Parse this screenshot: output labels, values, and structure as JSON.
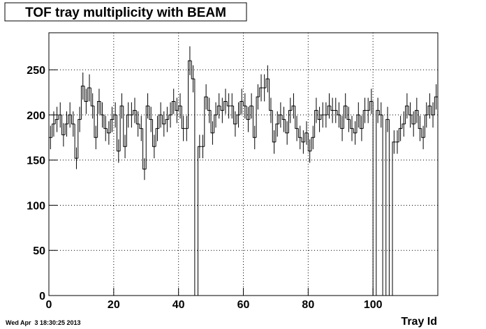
{
  "chart_data": {
    "type": "histogram",
    "title": "TOF tray multiplicity with BEAM",
    "x_label": "Tray Id",
    "footer": "Wed Apr  3 18:30:25 2013",
    "bins": [
      0,
      1,
      2,
      3,
      4,
      5,
      6,
      7,
      8,
      9,
      10,
      11,
      12,
      13,
      14,
      15,
      16,
      17,
      18,
      19,
      20,
      21,
      22,
      23,
      24,
      25,
      26,
      27,
      28,
      29,
      30,
      31,
      32,
      33,
      34,
      35,
      36,
      37,
      38,
      39,
      40,
      41,
      42,
      43,
      44,
      45,
      46,
      47,
      48,
      49,
      50,
      51,
      52,
      53,
      54,
      55,
      56,
      57,
      58,
      59,
      60,
      61,
      62,
      63,
      64,
      65,
      66,
      67,
      68,
      69,
      70,
      71,
      72,
      73,
      74,
      75,
      76,
      77,
      78,
      79,
      80,
      81,
      82,
      83,
      84,
      85,
      86,
      87,
      88,
      89,
      90,
      91,
      92,
      93,
      94,
      95,
      96,
      97,
      98,
      99,
      100,
      101,
      102,
      103,
      104,
      105,
      106,
      107,
      108,
      109,
      110,
      111,
      112,
      113,
      114,
      115,
      116,
      117,
      118,
      119,
      120
    ],
    "values": [
      175,
      190,
      195,
      200,
      178,
      190,
      200,
      190,
      152,
      195,
      232,
      215,
      230,
      210,
      175,
      215,
      200,
      185,
      180,
      195,
      200,
      160,
      210,
      165,
      200,
      200,
      205,
      190,
      185,
      140,
      210,
      195,
      165,
      185,
      200,
      190,
      195,
      200,
      215,
      205,
      210,
      185,
      185,
      260,
      240,
      0,
      165,
      165,
      220,
      205,
      180,
      200,
      210,
      205,
      215,
      210,
      210,
      190,
      200,
      215,
      210,
      195,
      210,
      175,
      220,
      230,
      230,
      240,
      205,
      170,
      190,
      200,
      195,
      180,
      205,
      210,
      185,
      175,
      170,
      180,
      160,
      175,
      205,
      195,
      200,
      200,
      210,
      205,
      205,
      200,
      185,
      210,
      195,
      185,
      180,
      200,
      185,
      205,
      205,
      215,
      0,
      205,
      200,
      0,
      195,
      0,
      170,
      170,
      185,
      190,
      210,
      200,
      190,
      205,
      185,
      175,
      200,
      210,
      200,
      220
    ],
    "errors": [
      13,
      14,
      14,
      14,
      13,
      14,
      14,
      14,
      12,
      14,
      15,
      14,
      15,
      14,
      13,
      14,
      14,
      14,
      13,
      14,
      14,
      13,
      14,
      13,
      14,
      14,
      14,
      14,
      14,
      12,
      14,
      14,
      13,
      14,
      14,
      14,
      14,
      14,
      14,
      14,
      14,
      14,
      14,
      16,
      15,
      0,
      13,
      13,
      14,
      14,
      13,
      14,
      14,
      14,
      14,
      14,
      14,
      14,
      14,
      14,
      14,
      14,
      14,
      13,
      14,
      15,
      15,
      15,
      14,
      13,
      14,
      14,
      14,
      13,
      14,
      14,
      14,
      13,
      13,
      13,
      13,
      13,
      14,
      14,
      14,
      14,
      14,
      14,
      14,
      14,
      14,
      14,
      14,
      14,
      13,
      14,
      14,
      14,
      14,
      14,
      0,
      14,
      14,
      0,
      14,
      0,
      13,
      13,
      14,
      14,
      14,
      14,
      14,
      14,
      14,
      13,
      14,
      14,
      14,
      14
    ],
    "color": "#000000",
    "xlim": [
      0,
      120
    ],
    "xticks": [
      0,
      20,
      40,
      60,
      80,
      100
    ],
    "ylim": [
      0,
      291
    ],
    "yticks": [
      0,
      50,
      100,
      150,
      200,
      250
    ],
    "grid": true
  }
}
